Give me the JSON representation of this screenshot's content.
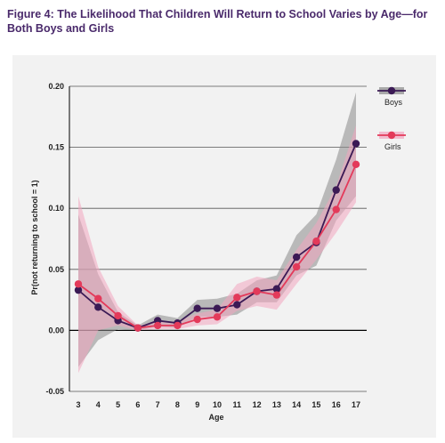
{
  "title": "Figure 4: The Likelihood That Children Will Return to School Varies by Age—for Both Boys and Girls",
  "colors": {
    "boys": "#3b1a55",
    "girls": "#e33a5a",
    "boys_band": "#8a8a8a",
    "girls_band": "#f2a5c0",
    "panel": "#f2f2f2",
    "title": "#4a2a6b"
  },
  "chart_data": {
    "type": "line",
    "xlabel": "Age",
    "ylabel": "Pr(not returning to school = 1)",
    "categories": [
      3,
      4,
      5,
      6,
      7,
      8,
      9,
      10,
      11,
      12,
      13,
      14,
      15,
      16,
      17
    ],
    "ylim": [
      -0.05,
      0.2
    ],
    "yticks": [
      "0.20",
      "0.15",
      "0.10",
      "0.05",
      "0.00",
      "-0.05"
    ],
    "grid": true,
    "legend_position": "right",
    "series": [
      {
        "name": "Boys",
        "values": [
          0.033,
          0.019,
          0.008,
          0.002,
          0.008,
          0.006,
          0.018,
          0.018,
          0.021,
          0.032,
          0.034,
          0.06,
          0.072,
          0.115,
          0.153
        ],
        "lower": [
          -0.03,
          -0.008,
          0.001,
          0.0,
          0.003,
          0.002,
          0.011,
          0.011,
          0.013,
          0.023,
          0.023,
          0.045,
          0.053,
          0.09,
          0.11
        ],
        "upper": [
          0.095,
          0.046,
          0.015,
          0.004,
          0.013,
          0.01,
          0.025,
          0.026,
          0.03,
          0.041,
          0.045,
          0.078,
          0.095,
          0.14,
          0.195
        ]
      },
      {
        "name": "Girls",
        "values": [
          0.038,
          0.026,
          0.012,
          0.002,
          0.004,
          0.004,
          0.009,
          0.011,
          0.027,
          0.032,
          0.029,
          0.052,
          0.073,
          0.099,
          0.136
        ],
        "lower": [
          -0.035,
          0.0,
          0.004,
          0.0,
          0.001,
          0.001,
          0.004,
          0.005,
          0.016,
          0.02,
          0.017,
          0.038,
          0.058,
          0.08,
          0.105
        ],
        "upper": [
          0.11,
          0.052,
          0.02,
          0.004,
          0.007,
          0.007,
          0.014,
          0.017,
          0.038,
          0.044,
          0.041,
          0.066,
          0.088,
          0.118,
          0.168
        ]
      }
    ]
  }
}
